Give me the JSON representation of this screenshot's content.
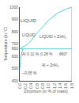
{
  "chart_data": {
    "type": "line",
    "xlabel": "Zirconium (in % of mass)",
    "ylabel": "Temperature (in °C)",
    "series": [
      {
        "color": "#55c8d8",
        "x": [
          0.0,
          0.04,
          0.1,
          0.18,
          0.28,
          0.4,
          0.6,
          0.8,
          1.0,
          1.2,
          1.4,
          1.6,
          1.8
        ],
        "values": [
          660,
          665,
          672,
          685,
          700,
          730,
          790,
          845,
          893,
          933,
          963,
          984,
          1000
        ]
      },
      {
        "color": "#55c8d8",
        "x": [
          0,
          1.8
        ],
        "values": [
          660,
          660
        ]
      },
      {
        "color": "#55c8d8",
        "x": [
          1.8,
          1.8
        ],
        "values": [
          400,
          1000
        ]
      },
      {
        "color": "#55c8d8",
        "x": [
          0.0,
          0.02,
          0.05,
          0.11
        ],
        "values": [
          500,
          560,
          610,
          660
        ]
      }
    ],
    "xlim": [
      0,
      1.8
    ],
    "ylim": [
      400,
      1000
    ],
    "xticks": [
      {
        "value": 0,
        "label": "0.0"
      },
      0.2,
      0.4,
      0.6,
      0.8,
      {
        "value": 1,
        "label": "1.0"
      },
      1.2,
      1.4,
      1.6,
      1.8
    ],
    "yticks": [
      400,
      500,
      600,
      660,
      700,
      800,
      900,
      1000
    ],
    "grid": false,
    "annotations": [
      "LIQUID",
      "LIQUID + ZrAl₃",
      "Al + ZrAl₃",
      "LIQUID",
      "Al",
      "0.11 %",
      "0.28 %",
      "660°",
      "~0.05 %"
    ]
  }
}
